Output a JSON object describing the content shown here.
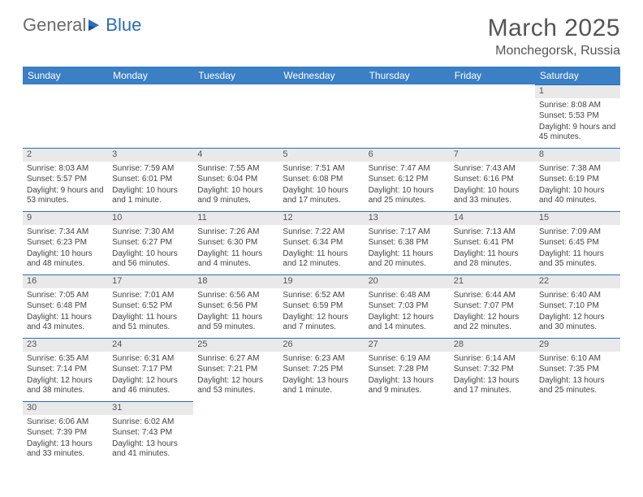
{
  "logo": {
    "general": "General",
    "blue": "Blue"
  },
  "title": "March 2025",
  "location": "Monchegorsk, Russia",
  "colors": {
    "header_bg": "#3b7fc4",
    "header_text": "#ffffff",
    "daynum_bg": "#e9e9e9",
    "border": "#2a6db8",
    "logo_blue": "#2a6db8",
    "logo_gray": "#6b6b6b"
  },
  "weekdays": [
    "Sunday",
    "Monday",
    "Tuesday",
    "Wednesday",
    "Thursday",
    "Friday",
    "Saturday"
  ],
  "weeks": [
    [
      null,
      null,
      null,
      null,
      null,
      null,
      {
        "n": "1",
        "sr": "Sunrise: 8:08 AM",
        "ss": "Sunset: 5:53 PM",
        "dl": "Daylight: 9 hours and 45 minutes."
      }
    ],
    [
      {
        "n": "2",
        "sr": "Sunrise: 8:03 AM",
        "ss": "Sunset: 5:57 PM",
        "dl": "Daylight: 9 hours and 53 minutes."
      },
      {
        "n": "3",
        "sr": "Sunrise: 7:59 AM",
        "ss": "Sunset: 6:01 PM",
        "dl": "Daylight: 10 hours and 1 minute."
      },
      {
        "n": "4",
        "sr": "Sunrise: 7:55 AM",
        "ss": "Sunset: 6:04 PM",
        "dl": "Daylight: 10 hours and 9 minutes."
      },
      {
        "n": "5",
        "sr": "Sunrise: 7:51 AM",
        "ss": "Sunset: 6:08 PM",
        "dl": "Daylight: 10 hours and 17 minutes."
      },
      {
        "n": "6",
        "sr": "Sunrise: 7:47 AM",
        "ss": "Sunset: 6:12 PM",
        "dl": "Daylight: 10 hours and 25 minutes."
      },
      {
        "n": "7",
        "sr": "Sunrise: 7:43 AM",
        "ss": "Sunset: 6:16 PM",
        "dl": "Daylight: 10 hours and 33 minutes."
      },
      {
        "n": "8",
        "sr": "Sunrise: 7:38 AM",
        "ss": "Sunset: 6:19 PM",
        "dl": "Daylight: 10 hours and 40 minutes."
      }
    ],
    [
      {
        "n": "9",
        "sr": "Sunrise: 7:34 AM",
        "ss": "Sunset: 6:23 PM",
        "dl": "Daylight: 10 hours and 48 minutes."
      },
      {
        "n": "10",
        "sr": "Sunrise: 7:30 AM",
        "ss": "Sunset: 6:27 PM",
        "dl": "Daylight: 10 hours and 56 minutes."
      },
      {
        "n": "11",
        "sr": "Sunrise: 7:26 AM",
        "ss": "Sunset: 6:30 PM",
        "dl": "Daylight: 11 hours and 4 minutes."
      },
      {
        "n": "12",
        "sr": "Sunrise: 7:22 AM",
        "ss": "Sunset: 6:34 PM",
        "dl": "Daylight: 11 hours and 12 minutes."
      },
      {
        "n": "13",
        "sr": "Sunrise: 7:17 AM",
        "ss": "Sunset: 6:38 PM",
        "dl": "Daylight: 11 hours and 20 minutes."
      },
      {
        "n": "14",
        "sr": "Sunrise: 7:13 AM",
        "ss": "Sunset: 6:41 PM",
        "dl": "Daylight: 11 hours and 28 minutes."
      },
      {
        "n": "15",
        "sr": "Sunrise: 7:09 AM",
        "ss": "Sunset: 6:45 PM",
        "dl": "Daylight: 11 hours and 35 minutes."
      }
    ],
    [
      {
        "n": "16",
        "sr": "Sunrise: 7:05 AM",
        "ss": "Sunset: 6:48 PM",
        "dl": "Daylight: 11 hours and 43 minutes."
      },
      {
        "n": "17",
        "sr": "Sunrise: 7:01 AM",
        "ss": "Sunset: 6:52 PM",
        "dl": "Daylight: 11 hours and 51 minutes."
      },
      {
        "n": "18",
        "sr": "Sunrise: 6:56 AM",
        "ss": "Sunset: 6:56 PM",
        "dl": "Daylight: 11 hours and 59 minutes."
      },
      {
        "n": "19",
        "sr": "Sunrise: 6:52 AM",
        "ss": "Sunset: 6:59 PM",
        "dl": "Daylight: 12 hours and 7 minutes."
      },
      {
        "n": "20",
        "sr": "Sunrise: 6:48 AM",
        "ss": "Sunset: 7:03 PM",
        "dl": "Daylight: 12 hours and 14 minutes."
      },
      {
        "n": "21",
        "sr": "Sunrise: 6:44 AM",
        "ss": "Sunset: 7:07 PM",
        "dl": "Daylight: 12 hours and 22 minutes."
      },
      {
        "n": "22",
        "sr": "Sunrise: 6:40 AM",
        "ss": "Sunset: 7:10 PM",
        "dl": "Daylight: 12 hours and 30 minutes."
      }
    ],
    [
      {
        "n": "23",
        "sr": "Sunrise: 6:35 AM",
        "ss": "Sunset: 7:14 PM",
        "dl": "Daylight: 12 hours and 38 minutes."
      },
      {
        "n": "24",
        "sr": "Sunrise: 6:31 AM",
        "ss": "Sunset: 7:17 PM",
        "dl": "Daylight: 12 hours and 46 minutes."
      },
      {
        "n": "25",
        "sr": "Sunrise: 6:27 AM",
        "ss": "Sunset: 7:21 PM",
        "dl": "Daylight: 12 hours and 53 minutes."
      },
      {
        "n": "26",
        "sr": "Sunrise: 6:23 AM",
        "ss": "Sunset: 7:25 PM",
        "dl": "Daylight: 13 hours and 1 minute."
      },
      {
        "n": "27",
        "sr": "Sunrise: 6:19 AM",
        "ss": "Sunset: 7:28 PM",
        "dl": "Daylight: 13 hours and 9 minutes."
      },
      {
        "n": "28",
        "sr": "Sunrise: 6:14 AM",
        "ss": "Sunset: 7:32 PM",
        "dl": "Daylight: 13 hours and 17 minutes."
      },
      {
        "n": "29",
        "sr": "Sunrise: 6:10 AM",
        "ss": "Sunset: 7:35 PM",
        "dl": "Daylight: 13 hours and 25 minutes."
      }
    ],
    [
      {
        "n": "30",
        "sr": "Sunrise: 6:06 AM",
        "ss": "Sunset: 7:39 PM",
        "dl": "Daylight: 13 hours and 33 minutes."
      },
      {
        "n": "31",
        "sr": "Sunrise: 6:02 AM",
        "ss": "Sunset: 7:43 PM",
        "dl": "Daylight: 13 hours and 41 minutes."
      },
      null,
      null,
      null,
      null,
      null
    ]
  ]
}
